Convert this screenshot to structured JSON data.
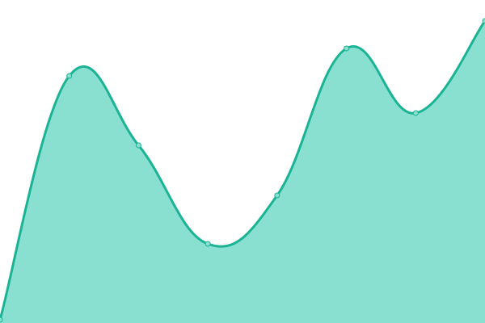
{
  "chart_data": {
    "type": "area",
    "title": "",
    "xlabel": "",
    "ylabel": "",
    "x": [
      0,
      1,
      2,
      3,
      4,
      5,
      6,
      7
    ],
    "values": [
      1,
      76.5,
      55,
      24.5,
      39.5,
      85,
      65,
      93.5
    ],
    "ylim": [
      0,
      100
    ],
    "grid": false,
    "axes_visible": false,
    "curve": "smooth",
    "colors": {
      "line": "#1ab394",
      "fill": "#8ae0d0",
      "point_fill": "#8ae0d0",
      "point_stroke": "#1ab394"
    }
  }
}
